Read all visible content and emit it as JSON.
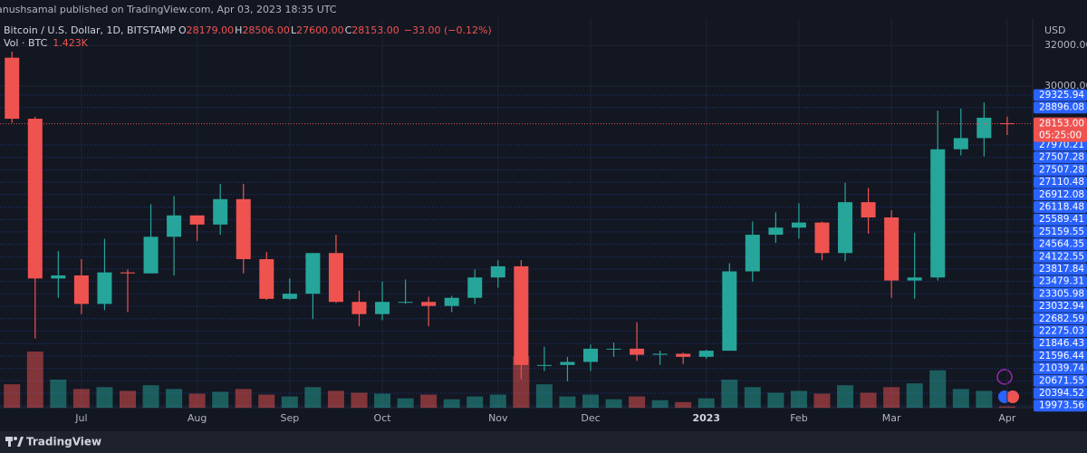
{
  "header": {
    "publisher": "anushsamal published on TradingView.com, Apr 03, 2023 18:35 UTC"
  },
  "chart_data": {
    "type": "candlestick",
    "title": "Bitcoin / U.S. Dollar, 1D, BITSTAMP",
    "ohlc_labels": [
      {
        "key": "O",
        "value": "28179.00"
      },
      {
        "key": "H",
        "value": "28506.00"
      },
      {
        "key": "L",
        "value": "27600.00"
      },
      {
        "key": "C",
        "value": "28153.00"
      }
    ],
    "change": "−33.00 (−0.12%)",
    "volume_title": "Vol · BTC",
    "volume_label": "1.423K",
    "currency": "USD",
    "categories": [
      null,
      null,
      null,
      "Jul",
      null,
      null,
      null,
      null,
      "Aug",
      null,
      null,
      null,
      "Sep",
      null,
      null,
      null,
      "Oct",
      null,
      null,
      null,
      null,
      "Nov",
      null,
      null,
      null,
      "Dec",
      null,
      null,
      null,
      null,
      "2023",
      null,
      null,
      null,
      "Feb",
      null,
      null,
      null,
      "Mar",
      null,
      null,
      null,
      null,
      "Apr"
    ],
    "open": [
      31400,
      28400,
      20550,
      20700,
      19300,
      20850,
      20800,
      22600,
      23650,
      23200,
      24450,
      21500,
      19550,
      19800,
      21800,
      19400,
      18800,
      19400,
      19400,
      19200,
      19600,
      20600,
      21150,
      16300,
      16300,
      16450,
      17100,
      17100,
      16800,
      16850,
      16700,
      17000,
      20900,
      22700,
      23050,
      23300,
      21800,
      24300,
      23550,
      20450,
      20600,
      26900,
      27450,
      28179
    ],
    "high": [
      31700,
      28500,
      21900,
      21500,
      22500,
      21000,
      24200,
      24600,
      23650,
      25200,
      25200,
      21850,
      20550,
      21800,
      22700,
      19950,
      20400,
      20500,
      19650,
      19700,
      21000,
      21450,
      21450,
      17200,
      16700,
      17300,
      17400,
      18400,
      17000,
      16900,
      17050,
      21300,
      23350,
      23800,
      24250,
      23350,
      25250,
      25000,
      23900,
      22800,
      28800,
      28900,
      29200,
      28506
    ],
    "low": [
      28200,
      17600,
      19600,
      18800,
      19000,
      18900,
      20800,
      20700,
      22400,
      22700,
      20800,
      19500,
      19500,
      18550,
      19350,
      18200,
      18500,
      19300,
      18200,
      18900,
      19300,
      20100,
      15600,
      16000,
      15500,
      16000,
      16700,
      16500,
      16300,
      16350,
      16600,
      17000,
      20400,
      22300,
      22500,
      21450,
      21400,
      22750,
      19600,
      19550,
      20450,
      26600,
      26550,
      27600
    ],
    "close": [
      28400,
      20550,
      20700,
      19300,
      20850,
      20800,
      22600,
      23650,
      23200,
      24450,
      21500,
      19550,
      19800,
      21800,
      19400,
      18800,
      19400,
      19400,
      19200,
      19600,
      20600,
      21150,
      16300,
      16300,
      16450,
      17100,
      17100,
      16800,
      16850,
      16700,
      17000,
      20900,
      22700,
      23050,
      23300,
      21800,
      24300,
      23550,
      20450,
      20600,
      26900,
      27450,
      28450,
      28153
    ],
    "volume": [
      25,
      60,
      30,
      20,
      22,
      18,
      24,
      20,
      15,
      17,
      20,
      14,
      12,
      22,
      18,
      16,
      15,
      10,
      14,
      9,
      12,
      14,
      55,
      25,
      12,
      14,
      9,
      12,
      8,
      6,
      10,
      30,
      22,
      16,
      18,
      15,
      24,
      16,
      22,
      26,
      40,
      20,
      18,
      1.423
    ],
    "ylim": [
      14200,
      32900
    ],
    "yticks": [
      {
        "value": 30000,
        "label": "30000.00"
      },
      {
        "value": 32000,
        "label": "32000.00"
      }
    ],
    "last_price_label": "28153.00",
    "countdown": "05:25:00",
    "levels": [
      "29325.94",
      "28896.08",
      "27970.21",
      "27507.28",
      "27507.28",
      "27110.48",
      "26912.08",
      "26118.48",
      "25589.41",
      "25159.55",
      "24564.35",
      "24122.55",
      "23817.84",
      "23479.31",
      "23305.98",
      "23032.94",
      "22682.59",
      "22275.03",
      "21846.43",
      "21596.44",
      "21039.74",
      "20671.55",
      "20394.52",
      "19973.56"
    ],
    "up_color": "#26a69a",
    "down_color": "#ef5350",
    "level_color": "#2962ff",
    "grid": true
  },
  "footer": {
    "brand": "TradingView"
  }
}
